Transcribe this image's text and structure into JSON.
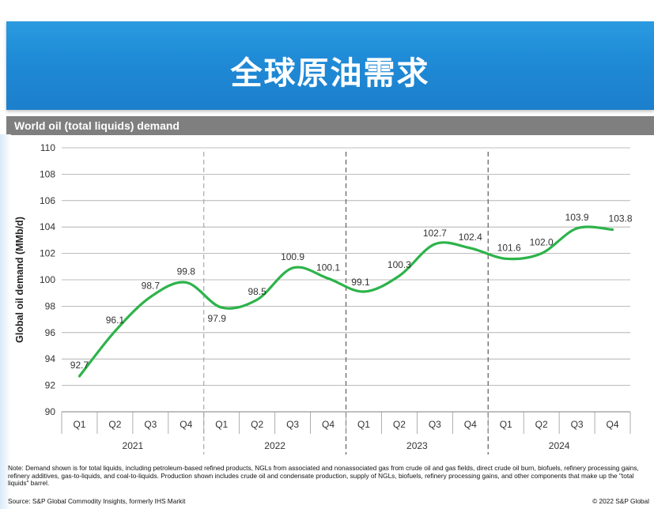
{
  "banner": {
    "title": "全球原油需求"
  },
  "chart_header": {
    "title": "World oil (total liquids) demand"
  },
  "chart_data": {
    "type": "line",
    "title": "World oil (total liquids) demand",
    "ylabel": "Global oil demand (MMb/d)",
    "xlabel": "",
    "ylim": [
      90,
      110
    ],
    "yticks": [
      90,
      92,
      94,
      96,
      98,
      100,
      102,
      104,
      106,
      108,
      110
    ],
    "grid": true,
    "legend": "none",
    "line_color": "#2db34a",
    "quarters": [
      "Q1",
      "Q2",
      "Q3",
      "Q4",
      "Q1",
      "Q2",
      "Q3",
      "Q4",
      "Q1",
      "Q2",
      "Q3",
      "Q4",
      "Q1",
      "Q2",
      "Q3",
      "Q4"
    ],
    "years": [
      "2021",
      "2022",
      "2023",
      "2024"
    ],
    "values": [
      92.7,
      96.1,
      98.7,
      99.8,
      97.9,
      98.5,
      100.9,
      100.1,
      99.1,
      100.3,
      102.7,
      102.4,
      101.6,
      102.0,
      103.9,
      103.8
    ],
    "labels": [
      "92.7",
      "96.1",
      "98.7",
      "99.8",
      "97.9",
      "98.5",
      "100.9",
      "100.1",
      "99.1",
      "100.3",
      "102.7",
      "102.4",
      "101.6",
      "102.0",
      "103.9",
      "103.8"
    ]
  },
  "notes": {
    "note": "Note: Demand shown is for total liquids, including petroleum-based refined products, NGLs from associated and nonassociated gas from crude oil and gas fields, direct crude oil burn, biofuels, refinery processing gains, refinery additives, gas-to-liquids, and coal-to-liquids. Production shown includes crude oil and condensate production, supply of NGLs, biofuels, refinery processing gains, and other components that make up the \"total liquids\" barrel.",
    "source": "Source: S&P Global Commodity Insights, formerly IHS Markit",
    "copyright": "© 2022 S&P Global"
  }
}
